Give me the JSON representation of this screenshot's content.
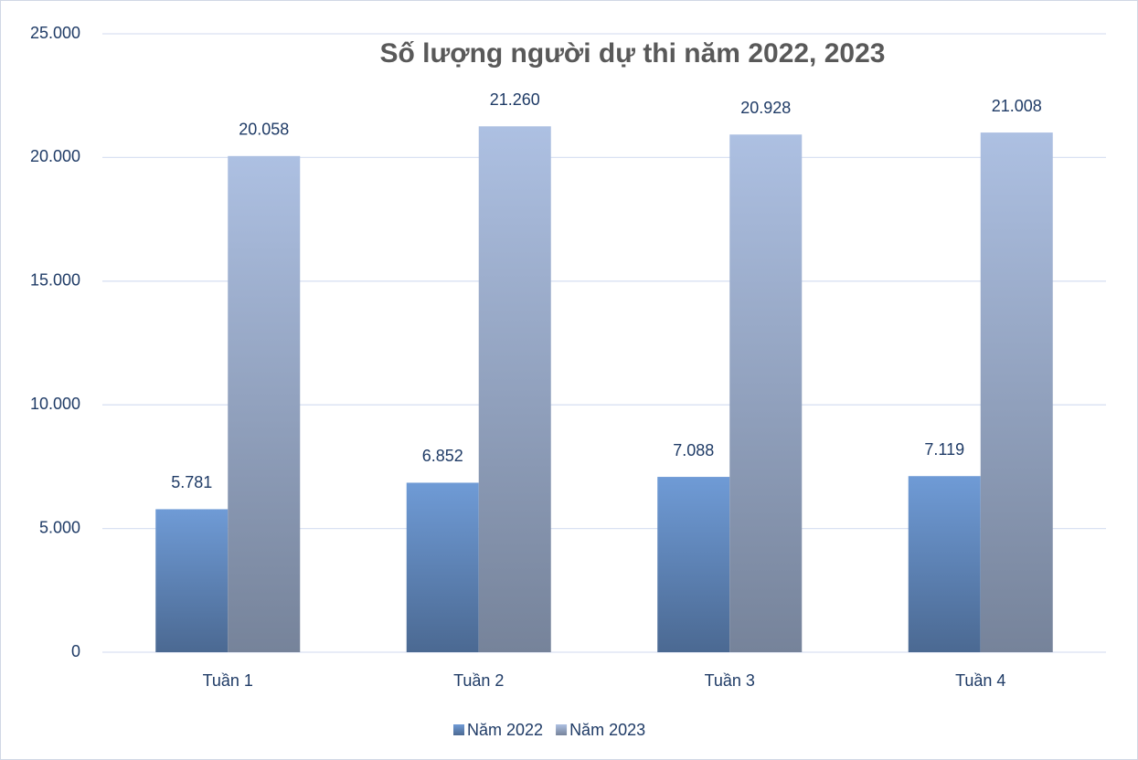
{
  "chart_data": {
    "type": "bar",
    "title": "Số lượng người dự thi năm 2022, 2023",
    "categories": [
      "Tuần 1",
      "Tuần 2",
      "Tuần 3",
      "Tuần 4"
    ],
    "series": [
      {
        "name": "Năm 2022",
        "color": "#6f9bd6",
        "values": [
          5781,
          6852,
          7088,
          7119
        ],
        "value_labels": [
          "5.781",
          "6.852",
          "7.088",
          "7.119"
        ]
      },
      {
        "name": "Năm 2023",
        "color": "#adc0e2",
        "values": [
          20058,
          21260,
          20928,
          21008
        ],
        "value_labels": [
          "20.058",
          "21.260",
          "20.928",
          "21.008"
        ]
      }
    ],
    "ylim": [
      0,
      25000
    ],
    "yticks": [
      {
        "value": 0,
        "label": "0"
      },
      {
        "value": 5000,
        "label": "5.000"
      },
      {
        "value": 10000,
        "label": "10.000"
      },
      {
        "value": 15000,
        "label": "15.000"
      },
      {
        "value": 20000,
        "label": "20.000"
      },
      {
        "value": 25000,
        "label": "25.000"
      }
    ],
    "grid": true,
    "legend": "bottom"
  }
}
